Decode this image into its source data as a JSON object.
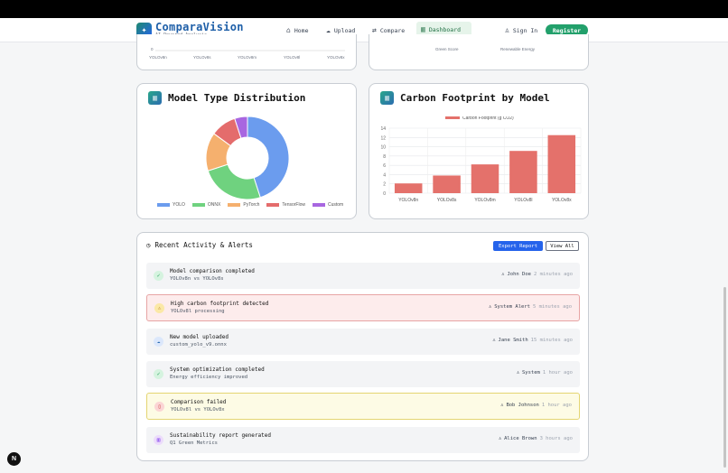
{
  "brand": {
    "title": "ComparaVision",
    "subtitle": "AI-Powered Analysis"
  },
  "nav": {
    "home": "Home",
    "upload": "Upload",
    "compare": "Compare",
    "dashboard": "Dashboard",
    "signin": "Sign In",
    "register": "Register"
  },
  "top_partial": {
    "left_ticks": [
      "YOLOv8n",
      "YOLOv8s",
      "YOLOv8m",
      "YOLOv8l",
      "YOLOv8x"
    ],
    "left_zero": "0",
    "right_ticks": [
      "Green Score",
      "Renewable Energy"
    ]
  },
  "cards": {
    "model_type": "Model Type Distribution",
    "carbon": "Carbon Footprint by Model"
  },
  "chart_data": [
    {
      "type": "pie",
      "title": "Model Type Distribution",
      "categories": [
        "YOLO",
        "ONNX",
        "PyTorch",
        "TensorFlow",
        "Custom"
      ],
      "values": [
        45,
        25,
        15,
        10,
        5
      ],
      "colors": [
        "#6b9cee",
        "#6fd27f",
        "#f5b06e",
        "#e46c6c",
        "#a866e0"
      ],
      "legend": "bottom"
    },
    {
      "type": "bar",
      "title": "Carbon Footprint by Model",
      "categories": [
        "YOLOv8n",
        "YOLOv8s",
        "YOLOv8m",
        "YOLOv8l",
        "YOLOv8x"
      ],
      "series": [
        {
          "name": "Carbon Footprint (g CO2)",
          "values": [
            2.1,
            3.8,
            6.2,
            9.1,
            12.5
          ]
        }
      ],
      "ylim": [
        0,
        14
      ],
      "yticks": [
        "0",
        "2",
        "4",
        "6",
        "8",
        "10",
        "12",
        "14"
      ],
      "color": "#e4716b",
      "grid": true,
      "legend": "top"
    }
  ],
  "activity": {
    "title": "Recent Activity & Alerts",
    "export": "Export Report",
    "view_all": "View All",
    "items": [
      {
        "title": "Model comparison completed",
        "sub": "YOLOv8n vs YOLOv8s",
        "user": "John Doe",
        "time": "2 minutes ago"
      },
      {
        "title": "High carbon footprint detected",
        "sub": "YOLOv8l processing",
        "user": "System Alert",
        "time": "5 minutes ago"
      },
      {
        "title": "New model uploaded",
        "sub": "custom_yolo_v9.onnx",
        "user": "Jane Smith",
        "time": "15 minutes ago"
      },
      {
        "title": "System optimization completed",
        "sub": "Energy efficiency improved",
        "user": "System",
        "time": "1 hour ago"
      },
      {
        "title": "Comparison failed",
        "sub": "YOLOv8l vs YOLOv8x",
        "user": "Bob Johnson",
        "time": "1 hour ago"
      },
      {
        "title": "Sustainability report generated",
        "sub": "Q1 Green Metrics",
        "user": "Alice Brown",
        "time": "3 hours ago"
      }
    ]
  },
  "badge": "N"
}
